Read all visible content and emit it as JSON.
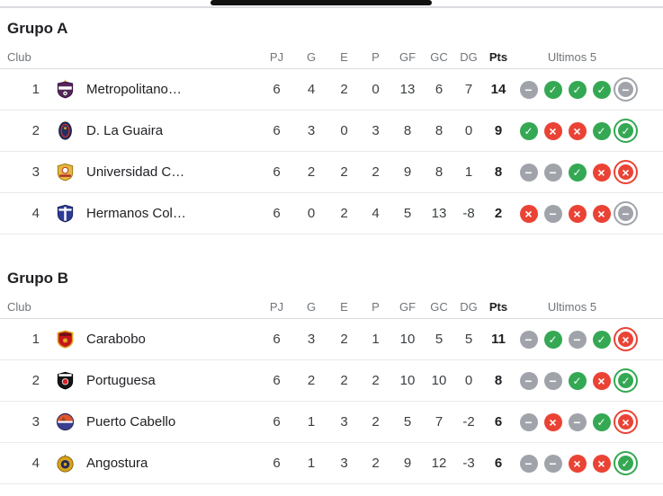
{
  "colors": {
    "win": "#34a853",
    "loss": "#ea4335",
    "draw": "#a0a4aa",
    "scrollbar_thumb": "#111111"
  },
  "groups": [
    {
      "title": "Grupo A",
      "header": {
        "club": "Club",
        "pj": "PJ",
        "g": "G",
        "e": "E",
        "p": "P",
        "gf": "GF",
        "gc": "GC",
        "dg": "DG",
        "pts": "Pts",
        "last5": "Ultimos 5"
      },
      "rows": [
        {
          "pos": "1",
          "club": "Metropolitano…",
          "pj": "6",
          "g": "4",
          "e": "2",
          "p": "0",
          "gf": "13",
          "gc": "6",
          "dg": "7",
          "pts": "14",
          "last5": [
            "draw",
            "win",
            "win",
            "win",
            "draw"
          ]
        },
        {
          "pos": "2",
          "club": "D. La Guaira",
          "pj": "6",
          "g": "3",
          "e": "0",
          "p": "3",
          "gf": "8",
          "gc": "8",
          "dg": "0",
          "pts": "9",
          "last5": [
            "win",
            "loss",
            "loss",
            "win",
            "win"
          ]
        },
        {
          "pos": "3",
          "club": "Universidad C…",
          "pj": "6",
          "g": "2",
          "e": "2",
          "p": "2",
          "gf": "9",
          "gc": "8",
          "dg": "1",
          "pts": "8",
          "last5": [
            "draw",
            "draw",
            "win",
            "loss",
            "loss"
          ]
        },
        {
          "pos": "4",
          "club": "Hermanos Col…",
          "pj": "6",
          "g": "0",
          "e": "2",
          "p": "4",
          "gf": "5",
          "gc": "13",
          "dg": "-8",
          "pts": "2",
          "last5": [
            "loss",
            "draw",
            "loss",
            "loss",
            "draw"
          ]
        }
      ]
    },
    {
      "title": "Grupo B",
      "header": {
        "club": "Club",
        "pj": "PJ",
        "g": "G",
        "e": "E",
        "p": "P",
        "gf": "GF",
        "gc": "GC",
        "dg": "DG",
        "pts": "Pts",
        "last5": "Ultimos 5"
      },
      "rows": [
        {
          "pos": "1",
          "club": "Carabobo",
          "pj": "6",
          "g": "3",
          "e": "2",
          "p": "1",
          "gf": "10",
          "gc": "5",
          "dg": "5",
          "pts": "11",
          "last5": [
            "draw",
            "win",
            "draw",
            "win",
            "loss"
          ]
        },
        {
          "pos": "2",
          "club": "Portuguesa",
          "pj": "6",
          "g": "2",
          "e": "2",
          "p": "2",
          "gf": "10",
          "gc": "10",
          "dg": "0",
          "pts": "8",
          "last5": [
            "draw",
            "draw",
            "win",
            "loss",
            "win"
          ]
        },
        {
          "pos": "3",
          "club": "Puerto Cabello",
          "pj": "6",
          "g": "1",
          "e": "3",
          "p": "2",
          "gf": "5",
          "gc": "7",
          "dg": "-2",
          "pts": "6",
          "last5": [
            "draw",
            "loss",
            "draw",
            "win",
            "loss"
          ]
        },
        {
          "pos": "4",
          "club": "Angostura",
          "pj": "6",
          "g": "1",
          "e": "3",
          "p": "2",
          "gf": "9",
          "gc": "12",
          "dg": "-3",
          "pts": "6",
          "last5": [
            "draw",
            "draw",
            "loss",
            "loss",
            "win"
          ]
        }
      ]
    }
  ]
}
